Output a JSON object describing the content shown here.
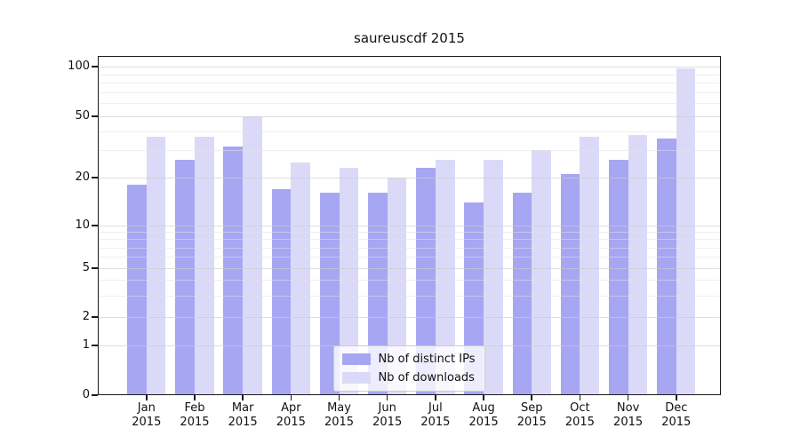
{
  "title": "saureuscdf 2015",
  "chart_data": {
    "type": "bar",
    "title": "saureuscdf 2015",
    "categories": [
      "Jan 2015",
      "Feb 2015",
      "Mar 2015",
      "Apr 2015",
      "May 2015",
      "Jun 2015",
      "Jul 2015",
      "Aug 2015",
      "Sep 2015",
      "Oct 2015",
      "Nov 2015",
      "Dec 2015"
    ],
    "series": [
      {
        "name": "Nb of distinct IPs",
        "color": "#a6a6f3",
        "values": [
          18,
          26,
          32,
          17,
          16,
          16,
          23,
          14,
          16,
          21,
          26,
          36
        ]
      },
      {
        "name": "Nb of downloads",
        "color": "#dadaf8",
        "values": [
          37,
          37,
          50,
          25,
          23,
          20,
          26,
          26,
          30,
          37,
          38,
          97
        ]
      }
    ],
    "xlabel": "",
    "ylabel": "",
    "yscale": "log-like",
    "yticks": [
      100,
      50,
      20,
      10,
      5,
      2,
      1,
      0
    ],
    "minor_gridlines": [
      3,
      4,
      6,
      7,
      8,
      9,
      30,
      40,
      60,
      70,
      80,
      90
    ],
    "ylim": [
      0,
      116
    ],
    "grid": true,
    "legend_position": "lower center"
  }
}
